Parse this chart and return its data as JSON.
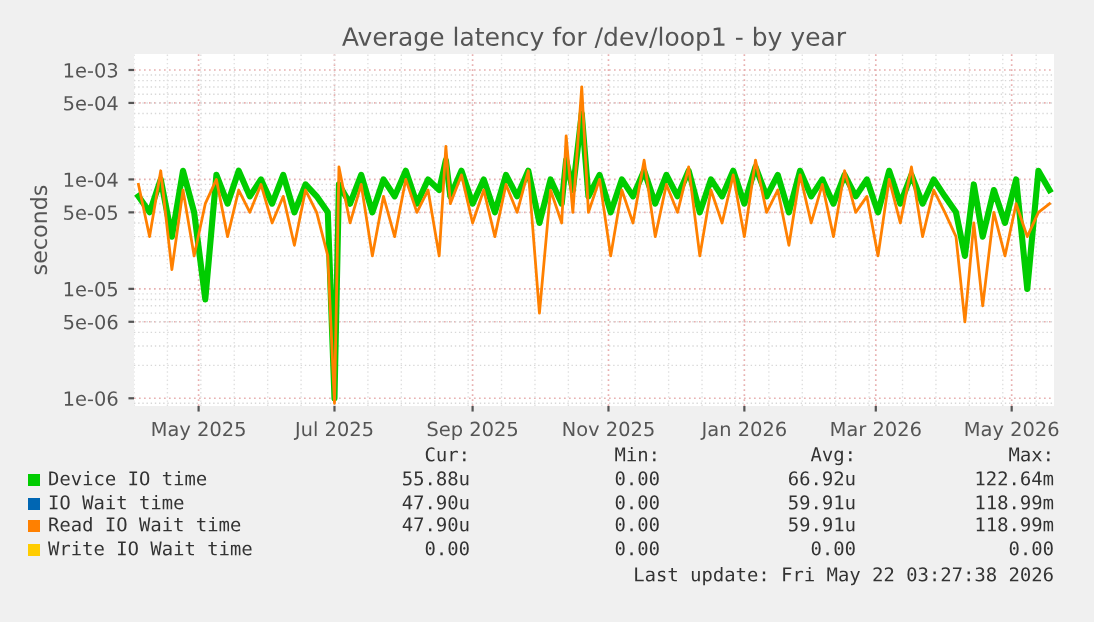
{
  "chart_data": {
    "type": "line",
    "title": "Average latency for /dev/loop1 - by year",
    "ylabel": "seconds",
    "log": "y",
    "grid": true,
    "legend": "bottom",
    "x": [
      "2025-04-04",
      "2025-04-09",
      "2025-04-14",
      "2025-04-19",
      "2025-04-24",
      "2025-04-29",
      "2025-05-04",
      "2025-05-09",
      "2025-05-14",
      "2025-05-19",
      "2025-05-24",
      "2025-05-29",
      "2025-06-03",
      "2025-06-08",
      "2025-06-13",
      "2025-06-18",
      "2025-06-23",
      "2025-06-28",
      "2025-07-01",
      "2025-07-03",
      "2025-07-08",
      "2025-07-13",
      "2025-07-18",
      "2025-07-23",
      "2025-07-28",
      "2025-08-02",
      "2025-08-07",
      "2025-08-12",
      "2025-08-17",
      "2025-08-20",
      "2025-08-22",
      "2025-08-27",
      "2025-09-01",
      "2025-09-06",
      "2025-09-11",
      "2025-09-16",
      "2025-09-21",
      "2025-09-26",
      "2025-10-01",
      "2025-10-06",
      "2025-10-11",
      "2025-10-13",
      "2025-10-16",
      "2025-10-20",
      "2025-10-23",
      "2025-10-28",
      "2025-11-02",
      "2025-11-07",
      "2025-11-12",
      "2025-11-17",
      "2025-11-22",
      "2025-11-27",
      "2025-12-02",
      "2025-12-07",
      "2025-12-12",
      "2025-12-17",
      "2025-12-22",
      "2025-12-27",
      "2026-01-01",
      "2026-01-06",
      "2026-01-11",
      "2026-01-16",
      "2026-01-21",
      "2026-01-26",
      "2026-01-31",
      "2026-02-05",
      "2026-02-10",
      "2026-02-15",
      "2026-02-20",
      "2026-02-25",
      "2026-03-02",
      "2026-03-07",
      "2026-03-12",
      "2026-03-17",
      "2026-03-22",
      "2026-03-27",
      "2026-04-01",
      "2026-04-06",
      "2026-04-10",
      "2026-04-14",
      "2026-04-18",
      "2026-04-23",
      "2026-04-28",
      "2026-05-03",
      "2026-05-08",
      "2026-05-13",
      "2026-05-18"
    ],
    "xlim": [
      "2025-04-02",
      "2026-05-20"
    ],
    "xticks": [
      {
        "value": "2025-05-01",
        "label": "May 2025"
      },
      {
        "value": "2025-07-01",
        "label": "Jul 2025"
      },
      {
        "value": "2025-09-01",
        "label": "Sep 2025"
      },
      {
        "value": "2025-11-01",
        "label": "Nov 2025"
      },
      {
        "value": "2026-01-01",
        "label": "Jan 2026"
      },
      {
        "value": "2026-03-01",
        "label": "Mar 2026"
      },
      {
        "value": "2026-05-01",
        "label": "May 2026"
      }
    ],
    "ylim": [
      8.5e-07,
      0.0014
    ],
    "yticks": [
      {
        "value": 1e-06,
        "label": "1e-06"
      },
      {
        "value": 5e-06,
        "label": "5e-06"
      },
      {
        "value": 1e-05,
        "label": "1e-05"
      },
      {
        "value": 5e-05,
        "label": "5e-05"
      },
      {
        "value": 0.0001,
        "label": "1e-04"
      },
      {
        "value": 0.0005,
        "label": "5e-04"
      },
      {
        "value": 0.001,
        "label": "1e-03"
      }
    ],
    "series": [
      {
        "name": "Device IO time",
        "color": "#00cc00",
        "values": [
          7e-05,
          5e-05,
          0.0001,
          3e-05,
          0.00012,
          5e-05,
          8e-06,
          0.00011,
          6e-05,
          0.00012,
          7e-05,
          0.0001,
          6e-05,
          0.00011,
          5e-05,
          9e-05,
          7e-05,
          5e-05,
          1e-06,
          9e-05,
          6e-05,
          0.00011,
          5e-05,
          0.0001,
          7e-05,
          0.00012,
          6e-05,
          0.0001,
          8e-05,
          0.00015,
          7e-05,
          0.00012,
          6e-05,
          0.0001,
          5e-05,
          0.00011,
          7e-05,
          0.00012,
          4e-05,
          0.0001,
          6e-05,
          0.00015,
          8e-05,
          0.0004,
          7e-05,
          0.00011,
          5e-05,
          0.0001,
          7e-05,
          0.00012,
          6e-05,
          0.00011,
          7e-05,
          0.00012,
          5e-05,
          0.0001,
          7e-05,
          0.00012,
          6e-05,
          0.00013,
          7e-05,
          0.00011,
          5e-05,
          0.00012,
          7e-05,
          0.0001,
          6e-05,
          0.00011,
          7e-05,
          0.0001,
          5e-05,
          0.00012,
          6e-05,
          0.00011,
          6e-05,
          0.0001,
          7e-05,
          5e-05,
          2e-05,
          9e-05,
          3e-05,
          8e-05,
          4e-05,
          0.0001,
          1e-05,
          0.00012,
          8e-05
        ]
      },
      {
        "name": "IO Wait time",
        "color": "#0066b3",
        "values": [
          null,
          null,
          null,
          null,
          null,
          null,
          null,
          null,
          null,
          null,
          null,
          null,
          null,
          null,
          null,
          null,
          null,
          null,
          null,
          null,
          null,
          null,
          null,
          null,
          null,
          null,
          null,
          null,
          null,
          null,
          null,
          null,
          null,
          null,
          null,
          null,
          null,
          null,
          null,
          null,
          null,
          null,
          null,
          null,
          null,
          null,
          null,
          null,
          null,
          null,
          null,
          null,
          null,
          null,
          null,
          null,
          null,
          null,
          null,
          null,
          null,
          null,
          null,
          null,
          null,
          null,
          null,
          null,
          null,
          null,
          null,
          null,
          null,
          null,
          null,
          null,
          null,
          null,
          null,
          null,
          null,
          null,
          null,
          null,
          null,
          null,
          null
        ]
      },
      {
        "name": "Read IO Wait time",
        "color": "#ff8000",
        "values": [
          9e-05,
          3e-05,
          0.00012,
          1.5e-05,
          8e-05,
          2e-05,
          6e-05,
          0.0001,
          3e-05,
          8e-05,
          5e-05,
          9e-05,
          4e-05,
          7e-05,
          2.5e-05,
          8e-05,
          5e-05,
          2e-05,
          9e-07,
          0.00013,
          4e-05,
          9e-05,
          2e-05,
          7e-05,
          3e-05,
          0.0001,
          5e-05,
          8e-05,
          2e-05,
          0.0002,
          6e-05,
          0.00011,
          4e-05,
          8e-05,
          3e-05,
          9e-05,
          5e-05,
          0.00012,
          6e-06,
          8e-05,
          4e-05,
          0.00025,
          5e-05,
          0.0007,
          5e-05,
          0.0001,
          2e-05,
          8e-05,
          4e-05,
          0.00015,
          3e-05,
          9e-05,
          5e-05,
          0.00013,
          2e-05,
          8e-05,
          4e-05,
          0.00011,
          3e-05,
          0.00015,
          5e-05,
          8e-05,
          2.5e-05,
          0.00011,
          4e-05,
          9e-05,
          3e-05,
          0.00012,
          5e-05,
          7e-05,
          2e-05,
          0.0001,
          4e-05,
          0.00013,
          3e-05,
          8e-05,
          5e-05,
          3e-05,
          5e-06,
          4e-05,
          7e-06,
          5e-05,
          2e-05,
          6e-05,
          3e-05,
          5e-05,
          6e-05
        ]
      },
      {
        "name": "Write IO Wait time",
        "color": "#ffcc00",
        "values": [
          null,
          null,
          null,
          null,
          null,
          null,
          null,
          null,
          null,
          null,
          null,
          null,
          null,
          null,
          null,
          null,
          null,
          null,
          null,
          null,
          null,
          null,
          null,
          null,
          null,
          null,
          null,
          null,
          null,
          null,
          null,
          null,
          null,
          null,
          null,
          null,
          null,
          null,
          null,
          null,
          null,
          null,
          null,
          null,
          null,
          null,
          null,
          null,
          null,
          null,
          null,
          null,
          null,
          null,
          null,
          null,
          null,
          null,
          null,
          null,
          null,
          null,
          null,
          null,
          null,
          null,
          null,
          null,
          null,
          null,
          null,
          null,
          null,
          null,
          null,
          null,
          null,
          null,
          null,
          null,
          null,
          null,
          null,
          null,
          null,
          null,
          null
        ]
      }
    ],
    "annotations": [
      "Cur:",
      "Min:",
      "Avg:",
      "Max:",
      "55.88u",
      "0.00",
      "66.92u",
      "122.64m",
      "47.90u",
      "0.00",
      "59.91u",
      "118.99m",
      "47.90u",
      "0.00",
      "59.91u",
      "118.99m",
      "0.00",
      "0.00",
      "0.00",
      "0.00",
      "Last update: Fri May 22 03:27:38 2026"
    ]
  }
}
